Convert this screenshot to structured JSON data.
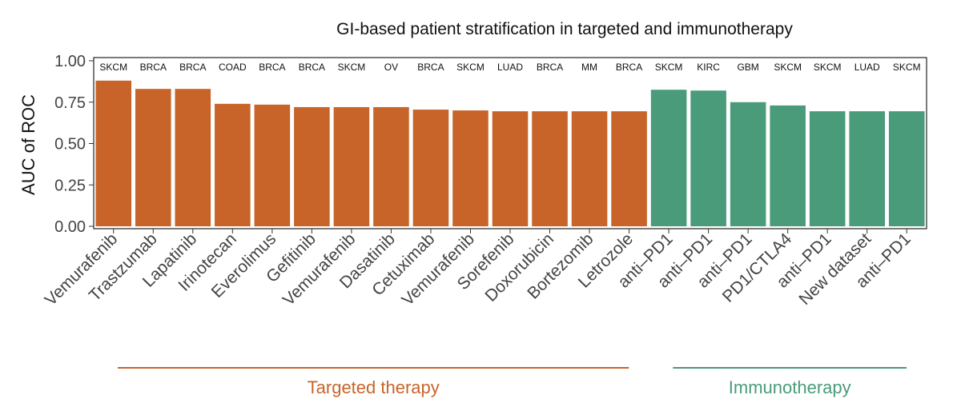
{
  "chart_data": {
    "type": "bar",
    "title": "GI-based patient stratification in targeted and immunotherapy",
    "ylabel": "AUC of ROC",
    "xlabel": "",
    "ylim": [
      0,
      1.0
    ],
    "yticks": [
      "0.00",
      "0.25",
      "0.50",
      "0.75",
      "1.00"
    ],
    "grid": false,
    "categories": [
      "Vemurafenib",
      "Trastzumab",
      "Lapatinib",
      "Irinotecan",
      "Everolimus",
      "Gefitinib",
      "Vemurafenib",
      "Dasatinib",
      "Cetuximab",
      "Vemurafenib",
      "Sorefenib",
      "Doxorubicin",
      "Bortezomib",
      "Letrozole",
      "anti–PD1",
      "anti–PD1",
      "anti–PD1",
      "PD1/CTLA4",
      "anti–PD1",
      "New dataset",
      "anti–PD1"
    ],
    "cancer_types": [
      "SKCM",
      "BRCA",
      "BRCA",
      "COAD",
      "BRCA",
      "BRCA",
      "SKCM",
      "OV",
      "BRCA",
      "SKCM",
      "LUAD",
      "BRCA",
      "MM",
      "BRCA",
      "SKCM",
      "KIRC",
      "GBM",
      "SKCM",
      "SKCM",
      "LUAD",
      "SKCM"
    ],
    "values": [
      0.88,
      0.83,
      0.83,
      0.74,
      0.735,
      0.72,
      0.72,
      0.72,
      0.705,
      0.7,
      0.695,
      0.695,
      0.695,
      0.695,
      0.825,
      0.82,
      0.75,
      0.73,
      0.695,
      0.695,
      0.695
    ],
    "groups": [
      {
        "name": "Targeted therapy",
        "color": "#C8642A",
        "start": 0,
        "end": 13
      },
      {
        "name": "Immunotherapy",
        "color": "#4A9B7A",
        "start": 14,
        "end": 20
      }
    ]
  }
}
